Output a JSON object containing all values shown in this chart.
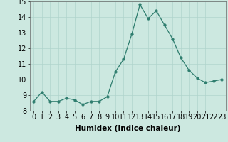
{
  "x": [
    0,
    1,
    2,
    3,
    4,
    5,
    6,
    7,
    8,
    9,
    10,
    11,
    12,
    13,
    14,
    15,
    16,
    17,
    18,
    19,
    20,
    21,
    22,
    23
  ],
  "y": [
    8.6,
    9.2,
    8.6,
    8.6,
    8.8,
    8.7,
    8.4,
    8.6,
    8.6,
    8.9,
    10.5,
    11.3,
    12.9,
    14.8,
    13.9,
    14.4,
    13.5,
    12.6,
    11.4,
    10.6,
    10.1,
    9.8,
    9.9,
    10.0
  ],
  "line_color": "#2e7d6e",
  "marker": "o",
  "marker_size": 2.5,
  "bg_color": "#cce8e0",
  "grid_color": "#b0d4cc",
  "xlabel": "Humidex (Indice chaleur)",
  "ylabel": "",
  "xlim": [
    -0.5,
    23.5
  ],
  "ylim": [
    8,
    15
  ],
  "yticks": [
    8,
    9,
    10,
    11,
    12,
    13,
    14,
    15
  ],
  "xticks": [
    0,
    1,
    2,
    3,
    4,
    5,
    6,
    7,
    8,
    9,
    10,
    11,
    12,
    13,
    14,
    15,
    16,
    17,
    18,
    19,
    20,
    21,
    22,
    23
  ],
  "xlabel_fontsize": 7.5,
  "tick_fontsize": 7
}
